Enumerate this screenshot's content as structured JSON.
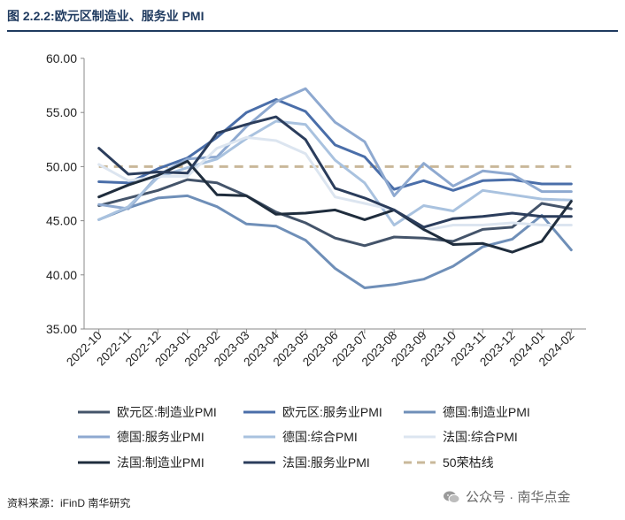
{
  "header": {
    "title": "图 2.2.2:欧元区制造业、服务业 PMI"
  },
  "footer": {
    "source": "资料来源：iFinD 南华研究",
    "watermark": "公众号 · 南华点金",
    "watermark_icon": "wechat-icon"
  },
  "chart_data": {
    "type": "line",
    "title": "",
    "xlabel": "",
    "ylabel": "",
    "ylim": [
      35.0,
      60.0
    ],
    "y_ticks": [
      "35.00",
      "40.00",
      "45.00",
      "50.00",
      "55.00",
      "60.00"
    ],
    "grid": false,
    "legend_position": "bottom",
    "categories": [
      "2022-10",
      "2022-11",
      "2022-12",
      "2023-01",
      "2023-02",
      "2023-03",
      "2023-04",
      "2023-05",
      "2023-06",
      "2023-07",
      "2023-08",
      "2023-09",
      "2023-10",
      "2023-11",
      "2023-12",
      "2024-01",
      "2024-02"
    ],
    "series": [
      {
        "name": "欧元区:制造业PMI",
        "color": "#44546a",
        "dash": "solid",
        "values": [
          46.4,
          47.1,
          47.8,
          48.8,
          48.5,
          47.3,
          45.8,
          44.8,
          43.4,
          42.7,
          43.5,
          43.4,
          43.1,
          44.2,
          44.4,
          46.6,
          46.1
        ]
      },
      {
        "name": "欧元区:服务业PMI",
        "color": "#4a6ea9",
        "dash": "solid",
        "values": [
          48.6,
          48.5,
          49.8,
          50.8,
          52.7,
          55.0,
          56.2,
          55.1,
          52.0,
          50.9,
          47.9,
          48.7,
          47.8,
          48.7,
          48.8,
          48.4,
          48.4
        ]
      },
      {
        "name": "德国:制造业PMI",
        "color": "#6f8fb8",
        "dash": "solid",
        "values": [
          45.1,
          46.2,
          47.1,
          47.3,
          46.3,
          44.7,
          44.5,
          43.2,
          40.6,
          38.8,
          39.1,
          39.6,
          40.8,
          42.6,
          43.3,
          45.5,
          42.3
        ]
      },
      {
        "name": "德国:服务业PMI",
        "color": "#8ea9d0",
        "dash": "solid",
        "values": [
          46.5,
          46.1,
          49.2,
          50.7,
          50.9,
          53.7,
          56.0,
          57.2,
          54.1,
          52.3,
          47.3,
          50.3,
          48.2,
          49.6,
          49.3,
          47.7,
          47.7
        ]
      },
      {
        "name": "德国:综合PMI",
        "color": "#a9c2df",
        "dash": "solid",
        "values": [
          45.1,
          46.3,
          49.0,
          49.9,
          50.7,
          52.6,
          54.2,
          53.9,
          50.6,
          48.5,
          44.6,
          46.4,
          45.9,
          47.8,
          47.4,
          47.0,
          46.9
        ]
      },
      {
        "name": "法国:综合PMI",
        "color": "#dce5f0",
        "dash": "solid",
        "values": [
          50.2,
          48.7,
          49.1,
          49.1,
          51.7,
          52.7,
          52.4,
          51.2,
          47.2,
          46.6,
          46.0,
          44.1,
          44.6,
          44.6,
          44.8,
          44.6,
          44.6
        ]
      },
      {
        "name": "法国:制造业PMI",
        "color": "#1f2d3d",
        "dash": "solid",
        "values": [
          47.2,
          48.3,
          49.2,
          50.5,
          47.4,
          47.3,
          45.6,
          45.7,
          46.0,
          45.1,
          46.0,
          44.2,
          42.8,
          42.9,
          42.1,
          43.1,
          46.8
        ]
      },
      {
        "name": "法国:服务业PMI",
        "color": "#2b3d5c",
        "dash": "solid",
        "values": [
          51.7,
          49.3,
          49.5,
          49.4,
          53.1,
          53.9,
          54.6,
          52.5,
          48.0,
          47.1,
          46.0,
          44.4,
          45.2,
          45.4,
          45.7,
          45.4,
          45.4
        ]
      },
      {
        "name": "50荣枯线",
        "color": "#c9b89a",
        "dash": "dashed",
        "values": [
          50,
          50,
          50,
          50,
          50,
          50,
          50,
          50,
          50,
          50,
          50,
          50,
          50,
          50,
          50,
          50,
          50
        ]
      }
    ]
  }
}
